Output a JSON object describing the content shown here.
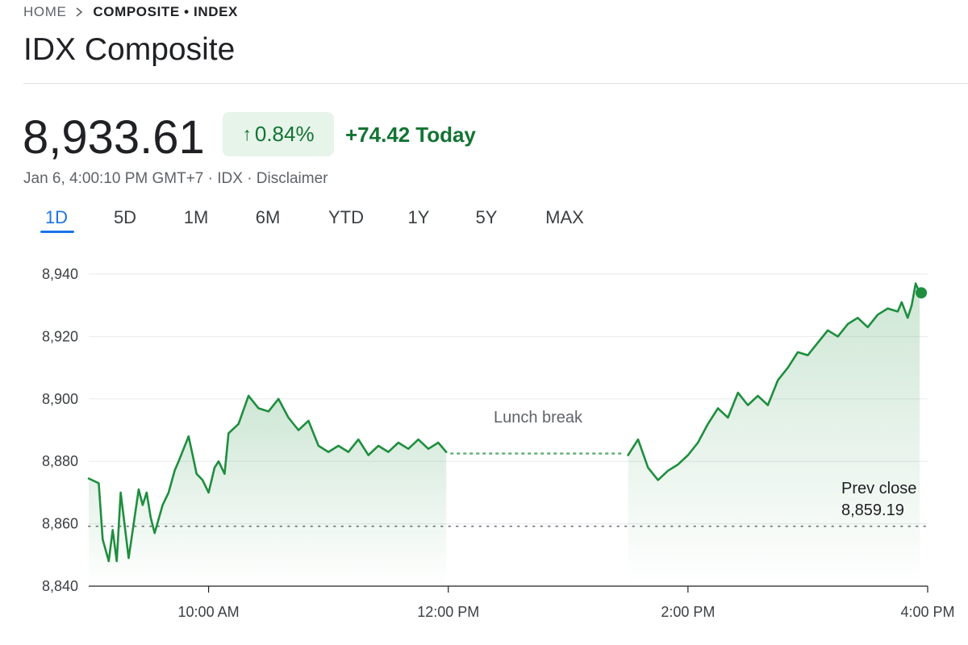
{
  "breadcrumb": {
    "home": "HOME",
    "current": "COMPOSITE • INDEX"
  },
  "title": "IDX Composite",
  "quote": {
    "price": "8,933.61",
    "change_percent": "0.84%",
    "change_points": "+74.42",
    "change_period": "Today",
    "timestamp": "Jan 6, 4:00:10 PM GMT+7 · IDX · Disclaimer"
  },
  "ranges": {
    "items": [
      "1D",
      "5D",
      "1M",
      "6M",
      "YTD",
      "1Y",
      "5Y",
      "MAX"
    ],
    "selected": "1D"
  },
  "colors": {
    "up": "#1e8e3e",
    "up_text": "#137333",
    "badge_bg": "#e6f4ea",
    "accent": "#1a73e8",
    "grid": "#e8eaed"
  },
  "icons": {
    "separator": "chevron-right-icon",
    "change": "arrow-up-icon"
  },
  "chart_data": {
    "type": "line",
    "y_ticks": [
      "8,940",
      "8,920",
      "8,900",
      "8,880",
      "8,860",
      "8,840"
    ],
    "x_ticks": [
      "10:00 AM",
      "12:00 PM",
      "2:00 PM",
      "4:00 PM"
    ],
    "ylim": [
      8840,
      8940
    ],
    "xlim": [
      "9:00 AM",
      "4:00 PM"
    ],
    "grid": true,
    "annotations": {
      "break_label": "Lunch break",
      "prev_close_label": "Prev close",
      "prev_close_value_label": "8,859.19"
    },
    "prev_close": 8859.19,
    "break_level": 8882.5,
    "series": [
      {
        "session": "morning",
        "x": [
          "9:00 AM",
          "9:05 AM",
          "9:07 AM",
          "9:10 AM",
          "9:12 AM",
          "9:14 AM",
          "9:16 AM",
          "9:20 AM",
          "9:25 AM",
          "9:27 AM",
          "9:29 AM",
          "9:31 AM",
          "9:33 AM",
          "9:37 AM",
          "9:40 AM",
          "9:43 AM",
          "9:45 AM",
          "9:50 AM",
          "9:52 AM",
          "9:54 AM",
          "9:57 AM",
          "10:00 AM",
          "10:03 AM",
          "10:05 AM",
          "10:08 AM",
          "10:10 AM",
          "10:15 AM",
          "10:20 AM",
          "10:25 AM",
          "10:30 AM",
          "10:35 AM",
          "10:40 AM",
          "10:45 AM",
          "10:50 AM",
          "10:55 AM",
          "11:00 AM",
          "11:05 AM",
          "11:10 AM",
          "11:15 AM",
          "11:20 AM",
          "11:25 AM",
          "11:30 AM",
          "11:35 AM",
          "11:40 AM",
          "11:45 AM",
          "11:50 AM",
          "11:55 AM",
          "11:59 AM"
        ],
        "y": [
          8874.5,
          8873,
          8855,
          8848,
          8858,
          8848,
          8870,
          8849,
          8871,
          8866,
          8870,
          8862,
          8857,
          8866,
          8870,
          8877,
          8880,
          8888,
          8882,
          8876,
          8874,
          8870,
          8878,
          8880,
          8876,
          8889,
          8892,
          8901,
          8897,
          8896,
          8900,
          8894,
          8890,
          8893,
          8885,
          8883,
          8885,
          8883,
          8887,
          8882,
          8885,
          8883,
          8886,
          8884,
          8887,
          8884,
          8886,
          8883
        ]
      },
      {
        "session": "afternoon",
        "x": [
          "1:30 PM",
          "1:35 PM",
          "1:40 PM",
          "1:45 PM",
          "1:50 PM",
          "1:55 PM",
          "2:00 PM",
          "2:05 PM",
          "2:10 PM",
          "2:15 PM",
          "2:20 PM",
          "2:25 PM",
          "2:30 PM",
          "2:35 PM",
          "2:40 PM",
          "2:45 PM",
          "2:50 PM",
          "2:55 PM",
          "3:00 PM",
          "3:05 PM",
          "3:10 PM",
          "3:15 PM",
          "3:20 PM",
          "3:25 PM",
          "3:30 PM",
          "3:35 PM",
          "3:40 PM",
          "3:45 PM",
          "3:47 PM",
          "3:50 PM",
          "3:52 PM",
          "3:54 PM",
          "3:56 PM"
        ],
        "y": [
          8882,
          8887,
          8878,
          8874,
          8877,
          8879,
          8882,
          8886,
          8892,
          8897,
          8894,
          8902,
          8898,
          8901,
          8898,
          8906,
          8910,
          8915,
          8914,
          8918,
          8922,
          8920,
          8924,
          8926,
          8923,
          8927,
          8929,
          8928,
          8931,
          8926,
          8930,
          8937,
          8934
        ]
      }
    ]
  }
}
